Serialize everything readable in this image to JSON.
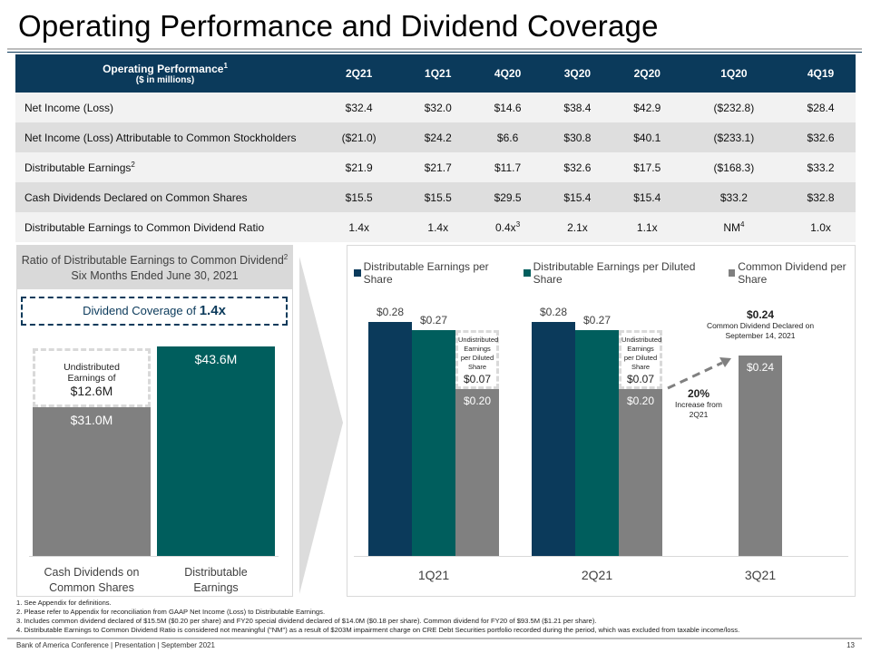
{
  "page": {
    "title": "Operating Performance and Dividend Coverage",
    "page_number": "13",
    "footer": "Bank of America Conference | Presentation | September 2021"
  },
  "colors": {
    "navy": "#0b3a5b",
    "teal": "#005e5d",
    "gray": "#808080",
    "light_gray": "#d9d9d9"
  },
  "table": {
    "header_label": "Operating Performance",
    "header_sup": "1",
    "header_sub": "($ in millions)",
    "columns": [
      "2Q21",
      "1Q21",
      "4Q20",
      "3Q20",
      "2Q20",
      "1Q20",
      "4Q19"
    ],
    "rows": [
      {
        "label": "Net Income (Loss)",
        "sup": "",
        "values": [
          "$32.4",
          "$32.0",
          "$14.6",
          "$38.4",
          "$42.9",
          "($232.8)",
          "$28.4"
        ],
        "sups": [
          "",
          "",
          "",
          "",
          "",
          "",
          ""
        ]
      },
      {
        "label": "Net Income (Loss) Attributable to Common Stockholders",
        "sup": "",
        "values": [
          "($21.0)",
          "$24.2",
          "$6.6",
          "$30.8",
          "$40.1",
          "($233.1)",
          "$32.6"
        ],
        "sups": [
          "",
          "",
          "",
          "",
          "",
          "",
          ""
        ]
      },
      {
        "label": "Distributable Earnings",
        "sup": "2",
        "values": [
          "$21.9",
          "$21.7",
          "$11.7",
          "$32.6",
          "$17.5",
          "($168.3)",
          "$33.2"
        ],
        "sups": [
          "",
          "",
          "",
          "",
          "",
          "",
          ""
        ]
      },
      {
        "label": "Cash Dividends Declared on Common Shares",
        "sup": "",
        "values": [
          "$15.5",
          "$15.5",
          "$29.5",
          "$15.4",
          "$15.4",
          "$33.2",
          "$32.8"
        ],
        "sups": [
          "",
          "",
          "",
          "",
          "",
          "",
          ""
        ]
      },
      {
        "label": "Distributable Earnings to Common Dividend Ratio",
        "sup": "",
        "values": [
          "1.4x",
          "1.4x",
          "0.4x",
          "2.1x",
          "1.1x",
          "NM",
          "1.0x"
        ],
        "sups": [
          "",
          "",
          "3",
          "",
          "",
          "4",
          ""
        ]
      }
    ]
  },
  "chart_data": [
    {
      "type": "bar",
      "title": "Ratio of Distributable Earnings to Common Dividend",
      "title_sup": "2",
      "subtitle": "Six Months Ended June 30, 2021",
      "callout_prefix": "Dividend Coverage of ",
      "callout_value": "1.4x",
      "categories": [
        "Cash Dividends on Common Shares",
        "Distributable Earnings"
      ],
      "category_lines": [
        [
          "Cash Dividends on",
          "Common Shares"
        ],
        [
          "Distributable",
          "Earnings"
        ]
      ],
      "values": [
        31.0,
        43.6
      ],
      "value_labels": [
        "$31.0M",
        "$43.6M"
      ],
      "units": "$M",
      "stacked_annotation": {
        "on_category": "Cash Dividends on Common Shares",
        "value": 12.6,
        "line1": "Undistributed",
        "line2": "Earnings of",
        "value_label": "$12.6M"
      },
      "ylim": [
        0,
        43.6
      ],
      "grid": false
    },
    {
      "type": "bar",
      "legend_position": "top",
      "categories": [
        "1Q21",
        "2Q21",
        "3Q21"
      ],
      "series": [
        {
          "name": "Distributable Earnings per Share",
          "values": [
            0.28,
            0.28,
            null
          ],
          "labels": [
            "$0.28",
            "$0.28",
            ""
          ]
        },
        {
          "name": "Distributable Earnings per Diluted Share",
          "values": [
            0.27,
            0.27,
            null
          ],
          "labels": [
            "$0.27",
            "$0.27",
            ""
          ]
        },
        {
          "name": "Common Dividend per Share",
          "values": [
            0.2,
            0.2,
            0.24
          ],
          "labels": [
            "$0.20",
            "$0.20",
            "$0.24"
          ]
        }
      ],
      "undistributed_annotations": [
        {
          "category": "1Q21",
          "text_lines": [
            "Undistributed",
            "Earnings",
            "per Diluted",
            "Share"
          ],
          "value": 0.07,
          "value_label": "$0.07"
        },
        {
          "category": "2Q21",
          "text_lines": [
            "Undistributed",
            "Earnings",
            "per Diluted",
            "Share"
          ],
          "value": 0.07,
          "value_label": "$0.07"
        }
      ],
      "increase_annotation": {
        "value": "20%",
        "line1": "Increase from",
        "line2": "2Q21"
      },
      "declared_annotation": {
        "value": "$0.24",
        "line1": "Common Dividend Declared on",
        "line2": "September 14, 2021"
      },
      "ylim": [
        0,
        0.28
      ],
      "grid": false
    }
  ],
  "footnotes": [
    "1. See Appendix for definitions.",
    "2. Please refer to Appendix for reconciliation from GAAP Net Income (Loss) to Distributable Earnings.",
    "3. Includes common dividend declared of $15.5M ($0.20 per share) and FY20 special dividend declared of $14.0M ($0.18 per share). Common dividend for FY20 of $93.5M ($1.21 per share).",
    "4. Distributable Earnings to Common Dividend Ratio is considered not meaningful (\"NM\") as a result of $203M impairment charge on CRE Debt Securities portfolio recorded during the period, which was excluded from taxable income/loss."
  ]
}
